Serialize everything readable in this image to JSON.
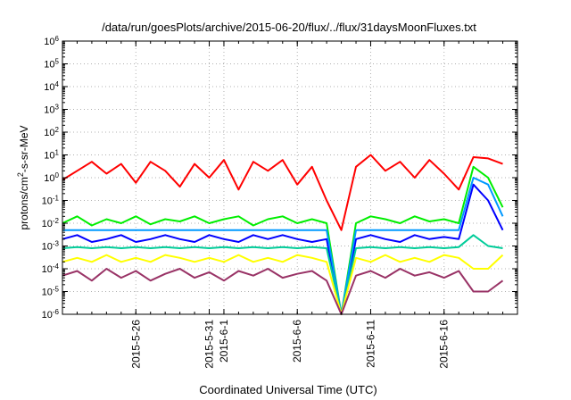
{
  "chart_data": {
    "type": "line",
    "title": "/data/run/goesPlots/archive/2015-06-20/flux/../flux/31daysMoonFluxes.txt",
    "xlabel": "Coordinated Universal Time (UTC)",
    "ylabel": {
      "prefix": "protons/cm",
      "superscript": "2",
      "suffix": "-s-sr-MeV"
    },
    "yscale": "log",
    "ylim": [
      1e-06,
      1000000.0
    ],
    "xlim": [
      "2015-05-21",
      "2015-06-21"
    ],
    "grid": true,
    "y_ticks": [
      {
        "base": "10",
        "exp": "-6"
      },
      {
        "base": "10",
        "exp": "-5"
      },
      {
        "base": "10",
        "exp": "-4"
      },
      {
        "base": "10",
        "exp": "-3"
      },
      {
        "base": "10",
        "exp": "-2"
      },
      {
        "base": "10",
        "exp": "-1"
      },
      {
        "base": "10",
        "exp": "0"
      },
      {
        "base": "10",
        "exp": "1"
      },
      {
        "base": "10",
        "exp": "2"
      },
      {
        "base": "10",
        "exp": "3"
      },
      {
        "base": "10",
        "exp": "4"
      },
      {
        "base": "10",
        "exp": "5"
      },
      {
        "base": "10",
        "exp": "6"
      }
    ],
    "x_ticks": [
      {
        "date": "2015-05-26",
        "label": "2015-5-26"
      },
      {
        "date": "2015-05-31",
        "label": "2015-5-31"
      },
      {
        "date": "2015-06-01",
        "label": "2015-6-1"
      },
      {
        "date": "2015-06-06",
        "label": "2015-6-6"
      },
      {
        "date": "2015-06-11",
        "label": "2015-6-11"
      },
      {
        "date": "2015-06-16",
        "label": "2015-6-16"
      }
    ],
    "series": [
      {
        "color": "#ff0000",
        "x": [
          "2015-05-21",
          "2015-05-22",
          "2015-05-23",
          "2015-05-24",
          "2015-05-25",
          "2015-05-26",
          "2015-05-27",
          "2015-05-28",
          "2015-05-29",
          "2015-05-30",
          "2015-05-31",
          "2015-06-01",
          "2015-06-02",
          "2015-06-03",
          "2015-06-04",
          "2015-06-05",
          "2015-06-06",
          "2015-06-07",
          "2015-06-08",
          "2015-06-09",
          "2015-06-10",
          "2015-06-11",
          "2015-06-12",
          "2015-06-13",
          "2015-06-14",
          "2015-06-15",
          "2015-06-16",
          "2015-06-17",
          "2015-06-18",
          "2015-06-19",
          "2015-06-20"
        ],
        "y": [
          0.8,
          2,
          5,
          1.5,
          4,
          0.6,
          5,
          2,
          0.4,
          4,
          1,
          6,
          0.3,
          5,
          2,
          6,
          0.5,
          3,
          0.1,
          0.005,
          3,
          10,
          2,
          5,
          1,
          6,
          1.5,
          0.3,
          8,
          7,
          4
        ]
      },
      {
        "color": "#00ee00",
        "x": [
          "2015-05-21",
          "2015-05-22",
          "2015-05-23",
          "2015-05-24",
          "2015-05-25",
          "2015-05-26",
          "2015-05-27",
          "2015-05-28",
          "2015-05-29",
          "2015-05-30",
          "2015-05-31",
          "2015-06-01",
          "2015-06-02",
          "2015-06-03",
          "2015-06-04",
          "2015-06-05",
          "2015-06-06",
          "2015-06-07",
          "2015-06-08",
          "2015-06-09",
          "2015-06-10",
          "2015-06-11",
          "2015-06-12",
          "2015-06-13",
          "2015-06-14",
          "2015-06-15",
          "2015-06-16",
          "2015-06-17",
          "2015-06-18",
          "2015-06-19",
          "2015-06-20"
        ],
        "y": [
          0.01,
          0.02,
          0.008,
          0.015,
          0.01,
          0.02,
          0.009,
          0.015,
          0.012,
          0.02,
          0.01,
          0.015,
          0.02,
          0.008,
          0.015,
          0.02,
          0.01,
          0.015,
          0.01,
          1e-06,
          0.01,
          0.02,
          0.015,
          0.01,
          0.02,
          0.012,
          0.015,
          0.01,
          3,
          1,
          0.05
        ]
      },
      {
        "color": "#0000ff",
        "x": [
          "2015-05-21",
          "2015-05-22",
          "2015-05-23",
          "2015-05-24",
          "2015-05-25",
          "2015-05-26",
          "2015-05-27",
          "2015-05-28",
          "2015-05-29",
          "2015-05-30",
          "2015-05-31",
          "2015-06-01",
          "2015-06-02",
          "2015-06-03",
          "2015-06-04",
          "2015-06-05",
          "2015-06-06",
          "2015-06-07",
          "2015-06-08",
          "2015-06-09",
          "2015-06-10",
          "2015-06-11",
          "2015-06-12",
          "2015-06-13",
          "2015-06-14",
          "2015-06-15",
          "2015-06-16",
          "2015-06-17",
          "2015-06-18",
          "2015-06-19",
          "2015-06-20"
        ],
        "y": [
          0.002,
          0.003,
          0.0015,
          0.002,
          0.003,
          0.0015,
          0.002,
          0.003,
          0.002,
          0.0015,
          0.003,
          0.002,
          0.0015,
          0.003,
          0.002,
          0.003,
          0.002,
          0.0015,
          0.002,
          1e-06,
          0.002,
          0.003,
          0.002,
          0.0015,
          0.003,
          0.002,
          0.0025,
          0.002,
          0.5,
          0.1,
          0.005
        ]
      },
      {
        "color": "#0099ff",
        "x": [
          "2015-05-21",
          "2015-05-22",
          "2015-05-23",
          "2015-05-24",
          "2015-05-25",
          "2015-05-26",
          "2015-05-27",
          "2015-05-28",
          "2015-05-29",
          "2015-05-30",
          "2015-05-31",
          "2015-06-01",
          "2015-06-02",
          "2015-06-03",
          "2015-06-04",
          "2015-06-05",
          "2015-06-06",
          "2015-06-07",
          "2015-06-08",
          "2015-06-09",
          "2015-06-10",
          "2015-06-11",
          "2015-06-12",
          "2015-06-13",
          "2015-06-14",
          "2015-06-15",
          "2015-06-16",
          "2015-06-17",
          "2015-06-18",
          "2015-06-19",
          "2015-06-20"
        ],
        "y": [
          0.005,
          0.005,
          0.005,
          0.005,
          0.005,
          0.005,
          0.005,
          0.005,
          0.005,
          0.005,
          0.005,
          0.005,
          0.005,
          0.005,
          0.005,
          0.005,
          0.005,
          0.005,
          0.005,
          1e-06,
          0.005,
          0.005,
          0.005,
          0.005,
          0.005,
          0.005,
          0.005,
          0.005,
          1,
          0.5,
          0.02
        ]
      },
      {
        "color": "#00cc99",
        "x": [
          "2015-05-21",
          "2015-05-22",
          "2015-05-23",
          "2015-05-24",
          "2015-05-25",
          "2015-05-26",
          "2015-05-27",
          "2015-05-28",
          "2015-05-29",
          "2015-05-30",
          "2015-05-31",
          "2015-06-01",
          "2015-06-02",
          "2015-06-03",
          "2015-06-04",
          "2015-06-05",
          "2015-06-06",
          "2015-06-07",
          "2015-06-08",
          "2015-06-09",
          "2015-06-10",
          "2015-06-11",
          "2015-06-12",
          "2015-06-13",
          "2015-06-14",
          "2015-06-15",
          "2015-06-16",
          "2015-06-17",
          "2015-06-18",
          "2015-06-19",
          "2015-06-20"
        ],
        "y": [
          0.0008,
          0.0009,
          0.0008,
          0.0009,
          0.0008,
          0.0009,
          0.0008,
          0.0009,
          0.0008,
          0.0009,
          0.0008,
          0.0009,
          0.0008,
          0.0009,
          0.0008,
          0.0009,
          0.0008,
          0.0009,
          0.0008,
          1e-06,
          0.0008,
          0.0009,
          0.0008,
          0.0009,
          0.0008,
          0.0009,
          0.0008,
          0.0009,
          0.003,
          0.001,
          0.0008
        ]
      },
      {
        "color": "#ffff00",
        "x": [
          "2015-05-21",
          "2015-05-22",
          "2015-05-23",
          "2015-05-24",
          "2015-05-25",
          "2015-05-26",
          "2015-05-27",
          "2015-05-28",
          "2015-05-29",
          "2015-05-30",
          "2015-05-31",
          "2015-06-01",
          "2015-06-02",
          "2015-06-03",
          "2015-06-04",
          "2015-06-05",
          "2015-06-06",
          "2015-06-07",
          "2015-06-08",
          "2015-06-09",
          "2015-06-10",
          "2015-06-11",
          "2015-06-12",
          "2015-06-13",
          "2015-06-14",
          "2015-06-15",
          "2015-06-16",
          "2015-06-17",
          "2015-06-18",
          "2015-06-19",
          "2015-06-20"
        ],
        "y": [
          0.0002,
          0.0003,
          0.0002,
          0.0004,
          0.0002,
          0.0003,
          0.0002,
          0.0004,
          0.0003,
          0.0002,
          0.0003,
          0.0002,
          0.0004,
          0.0002,
          0.0003,
          0.0002,
          0.0004,
          0.0003,
          0.0002,
          1e-06,
          0.0003,
          0.0002,
          0.0004,
          0.0002,
          0.0003,
          0.0002,
          0.0004,
          0.0003,
          0.0001,
          0.0001,
          0.0004
        ]
      },
      {
        "color": "#993366",
        "x": [
          "2015-05-21",
          "2015-05-22",
          "2015-05-23",
          "2015-05-24",
          "2015-05-25",
          "2015-05-26",
          "2015-05-27",
          "2015-05-28",
          "2015-05-29",
          "2015-05-30",
          "2015-05-31",
          "2015-06-01",
          "2015-06-02",
          "2015-06-03",
          "2015-06-04",
          "2015-06-05",
          "2015-06-06",
          "2015-06-07",
          "2015-06-08",
          "2015-06-09",
          "2015-06-10",
          "2015-06-11",
          "2015-06-12",
          "2015-06-13",
          "2015-06-14",
          "2015-06-15",
          "2015-06-16",
          "2015-06-17",
          "2015-06-18",
          "2015-06-19",
          "2015-06-20"
        ],
        "y": [
          5e-05,
          8e-05,
          3e-05,
          0.0001,
          4e-05,
          8e-05,
          3e-05,
          6e-05,
          0.0001,
          4e-05,
          7e-05,
          3e-05,
          8e-05,
          5e-05,
          0.0001,
          4e-05,
          6e-05,
          8e-05,
          3e-05,
          1e-06,
          5e-05,
          8e-05,
          4e-05,
          0.0001,
          5e-05,
          7e-05,
          4e-05,
          8e-05,
          1e-05,
          1e-05,
          3e-05
        ]
      }
    ]
  }
}
